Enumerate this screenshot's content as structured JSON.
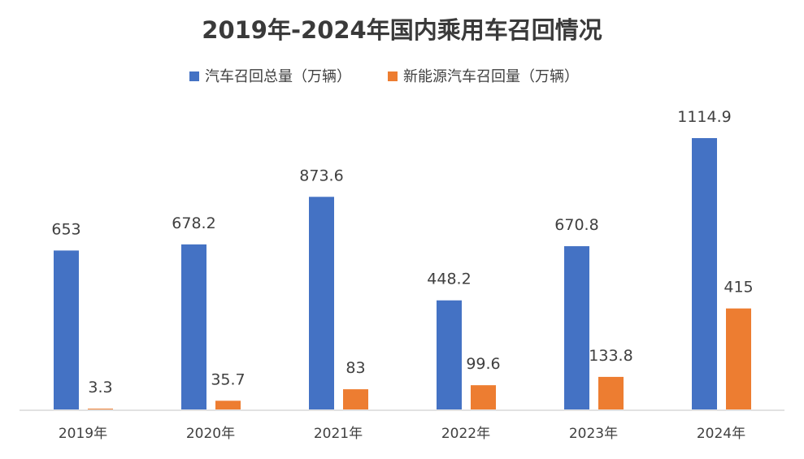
{
  "chart_data": {
    "type": "bar",
    "title": "2019年-2024年国内乘用车召回情况",
    "categories": [
      "2019年",
      "2020年",
      "2021年",
      "2022年",
      "2023年",
      "2024年"
    ],
    "series": [
      {
        "name": "汽车召回总量（万辆）",
        "color": "#4472C4",
        "values": [
          653,
          678.2,
          873.6,
          448.2,
          670.8,
          1114.9
        ],
        "labels": [
          "653",
          "678.2",
          "873.6",
          "448.2",
          "670.8",
          "1114.9"
        ]
      },
      {
        "name": "新能源汽车召回量（万辆）",
        "color": "#ED7D31",
        "values": [
          3.3,
          35.7,
          83,
          99.6,
          133.8,
          415
        ],
        "labels": [
          "3.3",
          "35.7",
          "83",
          "99.6",
          "133.8",
          "415"
        ]
      }
    ],
    "xlabel": "",
    "ylabel": "",
    "ylim": [
      0,
      1114.9
    ],
    "legend_position": "top",
    "grid": false
  }
}
